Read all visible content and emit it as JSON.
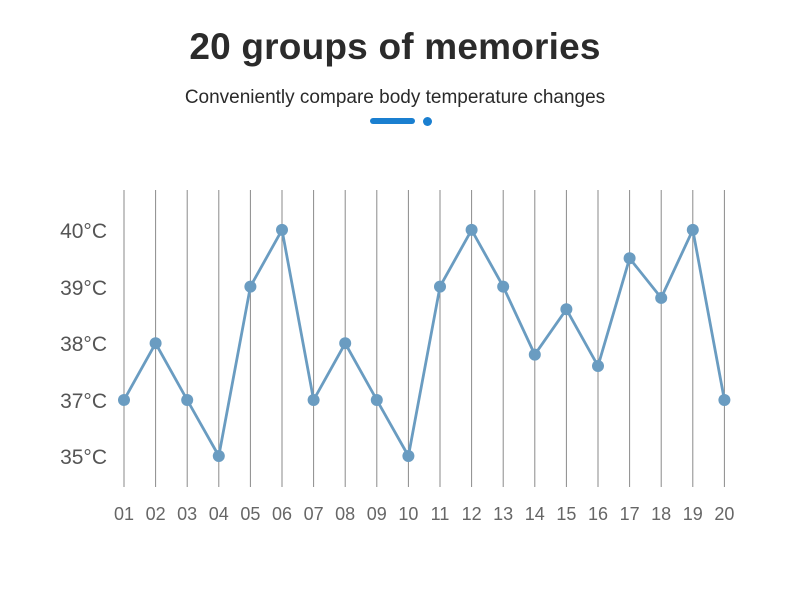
{
  "header": {
    "title": "20 groups of memories",
    "subtitle": "Conveniently compare body temperature changes"
  },
  "colors": {
    "accent": "#1a7fd0",
    "line": "#6a9cc1",
    "grid": "#8a8a8a"
  },
  "chart_data": {
    "type": "line",
    "title": "20 groups of memories",
    "subtitle": "Conveniently compare body temperature changes",
    "categories": [
      "01",
      "02",
      "03",
      "04",
      "05",
      "06",
      "07",
      "08",
      "09",
      "10",
      "11",
      "12",
      "13",
      "14",
      "15",
      "16",
      "17",
      "18",
      "19",
      "20"
    ],
    "values": [
      37.0,
      38.0,
      37.0,
      35.0,
      39.0,
      40.0,
      37.0,
      38.0,
      37.0,
      35.0,
      39.0,
      40.0,
      39.0,
      37.8,
      38.6,
      37.6,
      39.5,
      38.8,
      40.0,
      37.0
    ],
    "y_tick_labels": [
      "40°C",
      "39°C",
      "38°C",
      "37°C",
      "35°C"
    ],
    "y_axis_note": "tick labels are evenly spaced; the spacing between 37°C and 35°C equals one step",
    "grid": "vertical",
    "legend": "none"
  }
}
